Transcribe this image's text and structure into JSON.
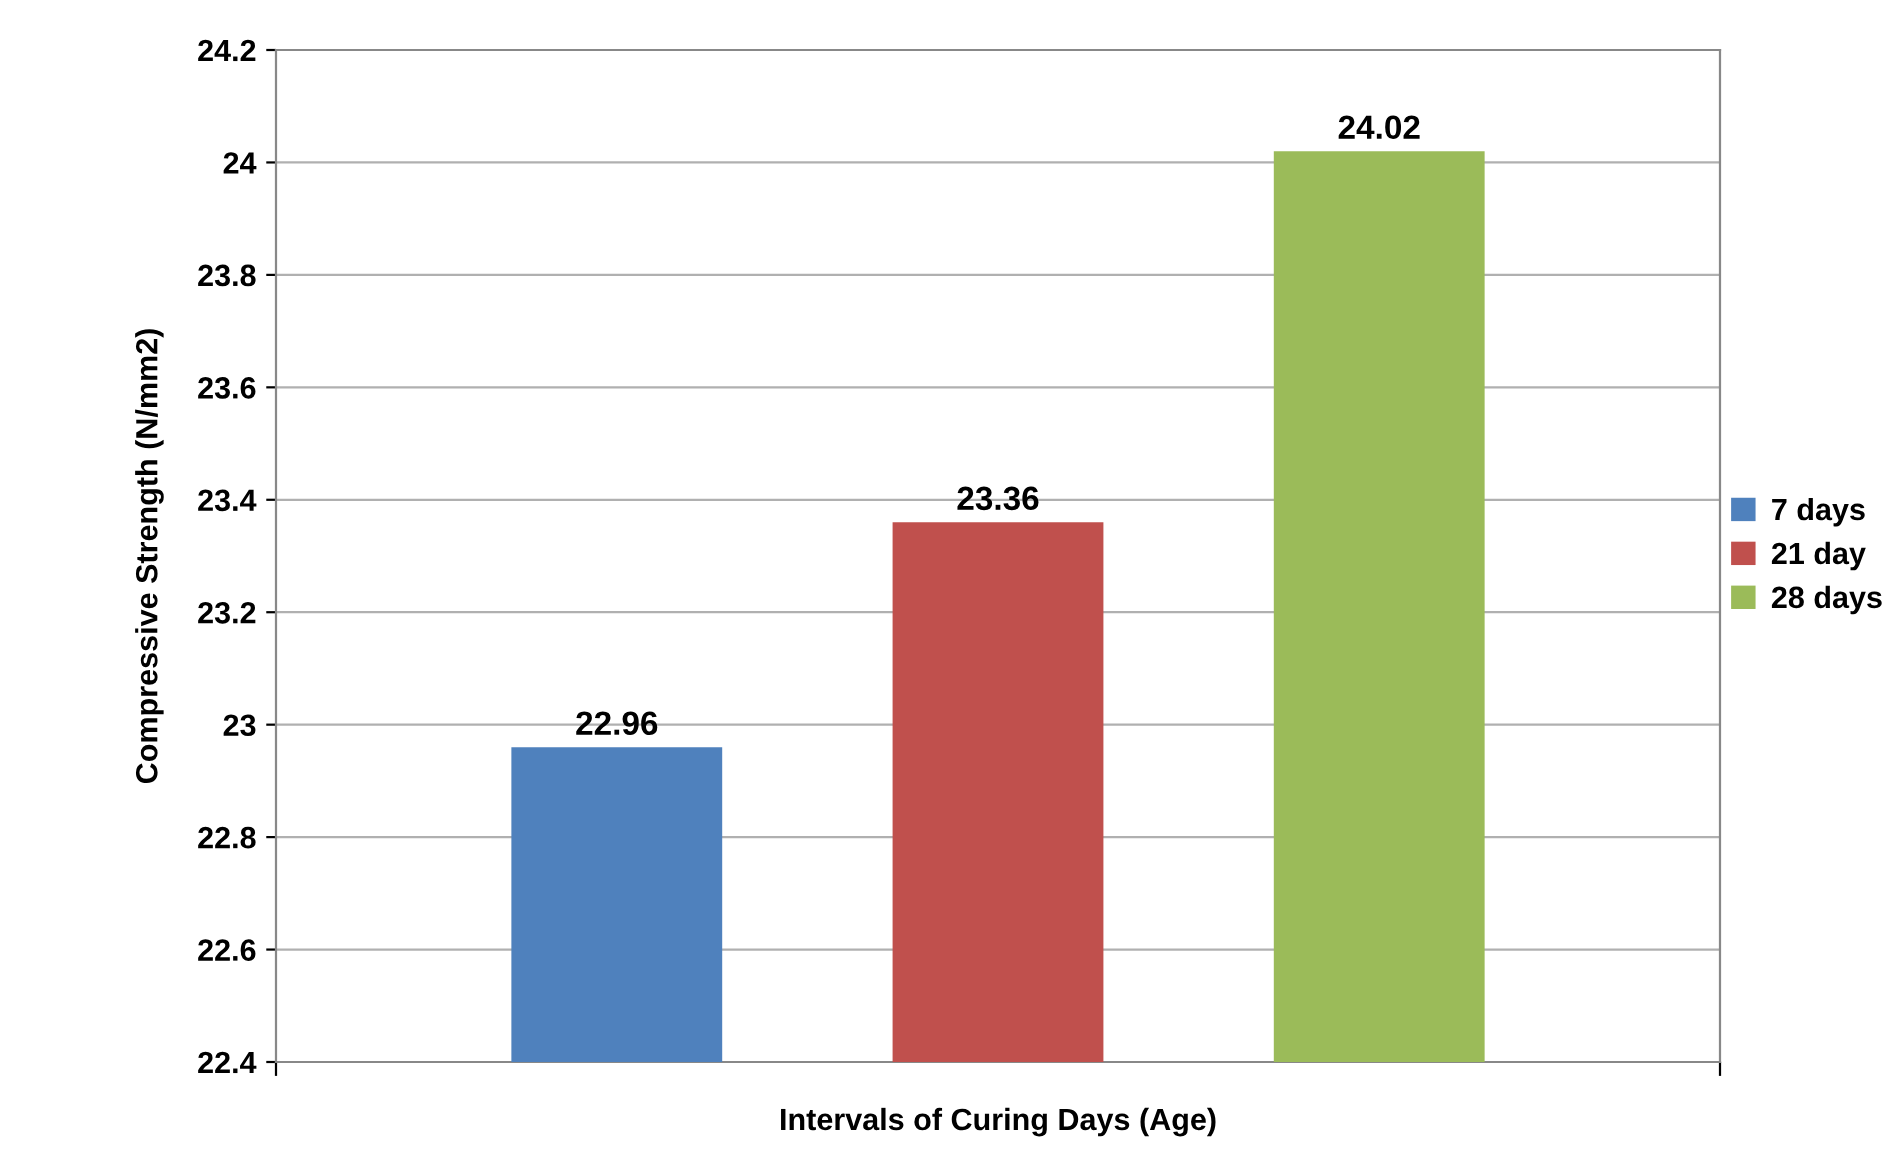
{
  "chart_data": {
    "type": "bar",
    "xlabel": "Intervals of Curing Days (Age)",
    "ylabel": "Compressive Strength (N/mm2)",
    "categories": [
      null
    ],
    "series": [
      {
        "name": "7 days",
        "color": "#4f81bd",
        "values": [
          22.96
        ]
      },
      {
        "name": "21 day",
        "color": "#c0504d",
        "values": [
          23.36
        ]
      },
      {
        "name": "28 days",
        "color": "#9bbb59",
        "values": [
          24.02
        ]
      }
    ],
    "ylim": [
      22.4,
      24.2
    ],
    "yticks": [
      22.4,
      22.6,
      22.8,
      23,
      23.2,
      23.4,
      23.6,
      23.8,
      24,
      24.2
    ],
    "grid": "y",
    "legend": "right",
    "data_labels": true
  }
}
